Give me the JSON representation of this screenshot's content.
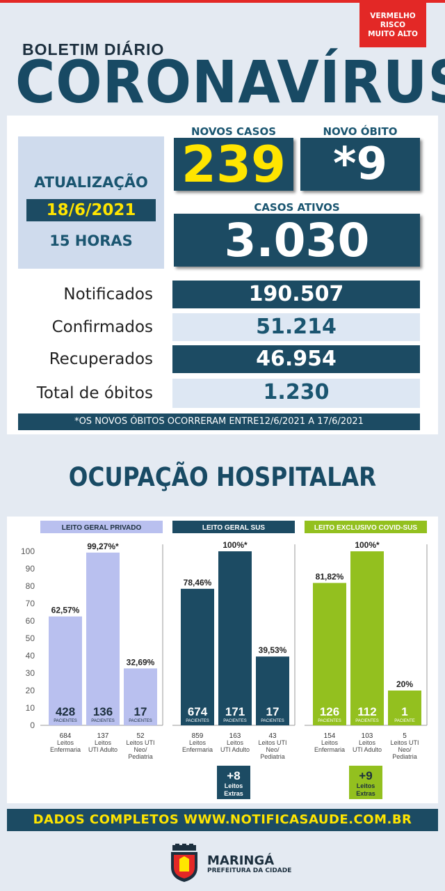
{
  "header": {
    "risk_line1": "VERMELHO",
    "risk_line2": "RISCO",
    "risk_line3": "MUITO ALTO",
    "subtitle": "BOLETIM DIÁRIO",
    "title": "CORONAVÍRUS"
  },
  "update": {
    "label": "ATUALIZAÇÃO",
    "date": "18/6/2021",
    "time": "15 HORAS"
  },
  "highlights": {
    "new_cases_label": "NOVOS CASOS",
    "new_cases": "239",
    "new_death_label": "NOVO ÓBITO",
    "new_death": "*9",
    "active_label": "CASOS ATIVOS",
    "active": "3.030"
  },
  "totals": [
    {
      "label": "Notificados",
      "value": "190.507"
    },
    {
      "label": "Confirmados",
      "value": "51.214"
    },
    {
      "label": "Recuperados",
      "value": "46.954"
    },
    {
      "label": "Total de óbitos",
      "value": "1.230"
    }
  ],
  "note": "*OS NOVOS ÓBITOS OCORRERAM ENTRE12/6/2021 A 17/6/2021",
  "hospital_title": "OCUPAÇÃO HOSPITALAR",
  "colors": {
    "dark": "#1c4b63",
    "yellow": "#ffe500",
    "red": "#e32826",
    "lavender": "#b9c0ef",
    "green": "#93c01f"
  },
  "chart_data": {
    "type": "bar",
    "ylim": [
      0,
      100
    ],
    "yticks": [
      "0",
      "10",
      "20",
      "30",
      "40",
      "50",
      "60",
      "70",
      "80",
      "90",
      "100"
    ],
    "patients_unit": "PACIENTES",
    "patients_unit_single": "PACIENTE",
    "groups": [
      {
        "name": "LEITO GERAL PRIVADO",
        "color": "#b9c0ef",
        "bars": [
          {
            "value": 62.57,
            "label": "62,57%",
            "patients": "428",
            "beds": "684",
            "bed_type": [
              "Leitos",
              "Enfermaria"
            ]
          },
          {
            "value": 99.27,
            "label": "99,27%*",
            "patients": "136",
            "beds": "137",
            "bed_type": [
              "Leitos",
              "UTI Adulto"
            ]
          },
          {
            "value": 32.69,
            "label": "32,69%",
            "patients": "17",
            "beds": "52",
            "bed_type": [
              "Leitos UTI",
              "Neo/",
              "Pediatria"
            ]
          }
        ]
      },
      {
        "name": "LEITO GERAL SUS",
        "color": "#1c4b63",
        "bars": [
          {
            "value": 78.46,
            "label": "78,46%",
            "patients": "674",
            "beds": "859",
            "bed_type": [
              "Leitos",
              "Enfermaria"
            ]
          },
          {
            "value": 100,
            "label": "100%*",
            "patients": "171",
            "beds": "163",
            "bed_type": [
              "Leitos",
              "UTI Adulto"
            ]
          },
          {
            "value": 39.53,
            "label": "39,53%",
            "patients": "17",
            "beds": "43",
            "bed_type": [
              "Leitos UTI",
              "Neo/",
              "Pediatria"
            ]
          }
        ],
        "extra": [
          "+8",
          "Leitos",
          "Extras"
        ]
      },
      {
        "name": "LEITO EXCLUSIVO COVID-SUS",
        "color": "#93c01f",
        "bars": [
          {
            "value": 81.82,
            "label": "81,82%",
            "patients": "126",
            "beds": "154",
            "bed_type": [
              "Leitos",
              "Enfermaria"
            ]
          },
          {
            "value": 100,
            "label": "100%*",
            "patients": "112",
            "beds": "103",
            "bed_type": [
              "Leitos",
              "UTI Adulto"
            ]
          },
          {
            "value": 20,
            "label": "20%",
            "patients": "1",
            "beds": "5",
            "bed_type": [
              "Leitos UTI",
              "Neo/",
              "Pediatria"
            ]
          }
        ],
        "extra": [
          "+9",
          "Leitos",
          "Extras"
        ]
      }
    ]
  },
  "footer": {
    "site": "DADOS COMPLETOS  WWW.NOTIFICASAUDE.COM.BR",
    "city": "MARINGÁ",
    "pref": "PREFEITURA DA CIDADE"
  }
}
